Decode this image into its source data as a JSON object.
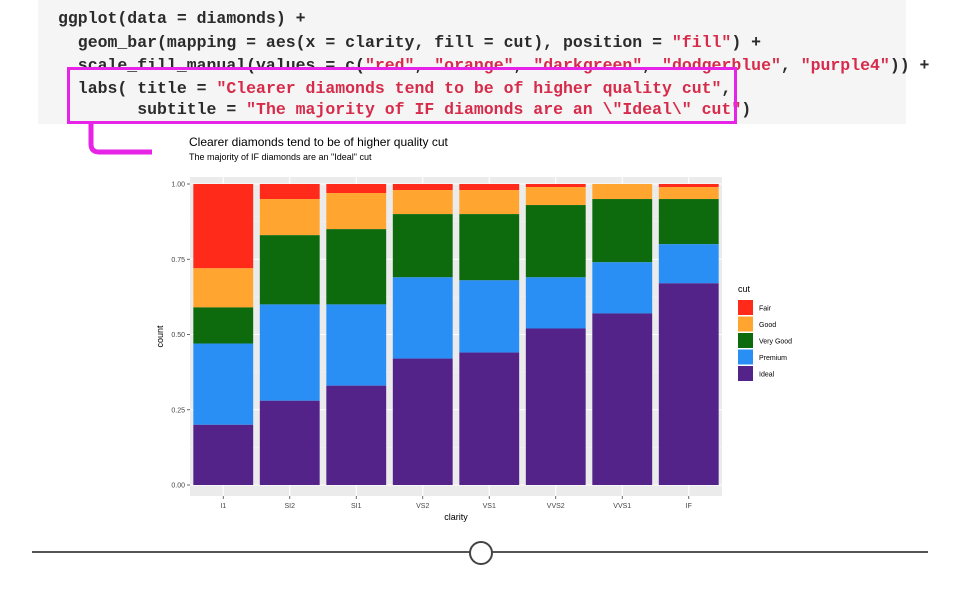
{
  "code": {
    "lines": [
      [
        {
          "t": "ggplot(data = diamonds) +"
        }
      ],
      [
        {
          "t": "  geom_bar(mapping = aes(x = clarity, fill = cut), position = "
        },
        {
          "t": "\"fill\"",
          "s": 1
        },
        {
          "t": ") +"
        }
      ],
      [
        {
          "t": "  scale_fill_manual(values = c("
        },
        {
          "t": "\"red\"",
          "s": 1
        },
        {
          "t": ", "
        },
        {
          "t": "\"orange\"",
          "s": 1
        },
        {
          "t": ", "
        },
        {
          "t": "\"darkgreen\"",
          "s": 1
        },
        {
          "t": ", "
        },
        {
          "t": "\"dodgerblue\"",
          "s": 1
        },
        {
          "t": ", "
        },
        {
          "t": "\"purple4\"",
          "s": 1
        },
        {
          "t": ")) +"
        }
      ],
      [
        {
          "t": "  labs( title = "
        },
        {
          "t": "\"Clearer diamonds tend to be of higher quality cut\"",
          "s": 1
        },
        {
          "t": ","
        }
      ],
      [
        {
          "t": "        subtitle = "
        },
        {
          "t": "\"The majority of IF diamonds are an \\\"Ideal\\\" cut\"",
          "s": 1
        },
        {
          "t": ")"
        }
      ]
    ]
  },
  "chart_data": {
    "type": "bar",
    "stacked": "fill",
    "title": "Clearer diamonds tend to be of higher quality cut",
    "subtitle": "The majority of IF diamonds are an \"Ideal\" cut",
    "xlabel": "clarity",
    "ylabel": "count",
    "ylim": [
      0,
      1
    ],
    "yticks": [
      "0.00",
      "0.25",
      "0.50",
      "0.75",
      "1.00"
    ],
    "categories": [
      "I1",
      "SI2",
      "SI1",
      "VS2",
      "VS1",
      "VVS2",
      "VVS1",
      "IF"
    ],
    "legend_title": "cut",
    "legend_position": "right",
    "grid": true,
    "series": [
      {
        "name": "Fair",
        "color": "#ff2a1a",
        "values": [
          0.28,
          0.05,
          0.03,
          0.02,
          0.02,
          0.01,
          0.0,
          0.01
        ]
      },
      {
        "name": "Good",
        "color": "#ffa530",
        "values": [
          0.13,
          0.12,
          0.12,
          0.08,
          0.08,
          0.06,
          0.05,
          0.04
        ]
      },
      {
        "name": "Very Good",
        "color": "#0d6a0d",
        "values": [
          0.12,
          0.23,
          0.25,
          0.21,
          0.22,
          0.24,
          0.21,
          0.15
        ]
      },
      {
        "name": "Premium",
        "color": "#2a8ff5",
        "values": [
          0.27,
          0.32,
          0.27,
          0.27,
          0.24,
          0.17,
          0.17,
          0.13
        ]
      },
      {
        "name": "Ideal",
        "color": "#53238a",
        "values": [
          0.2,
          0.28,
          0.33,
          0.42,
          0.44,
          0.52,
          0.57,
          0.67
        ]
      }
    ]
  }
}
